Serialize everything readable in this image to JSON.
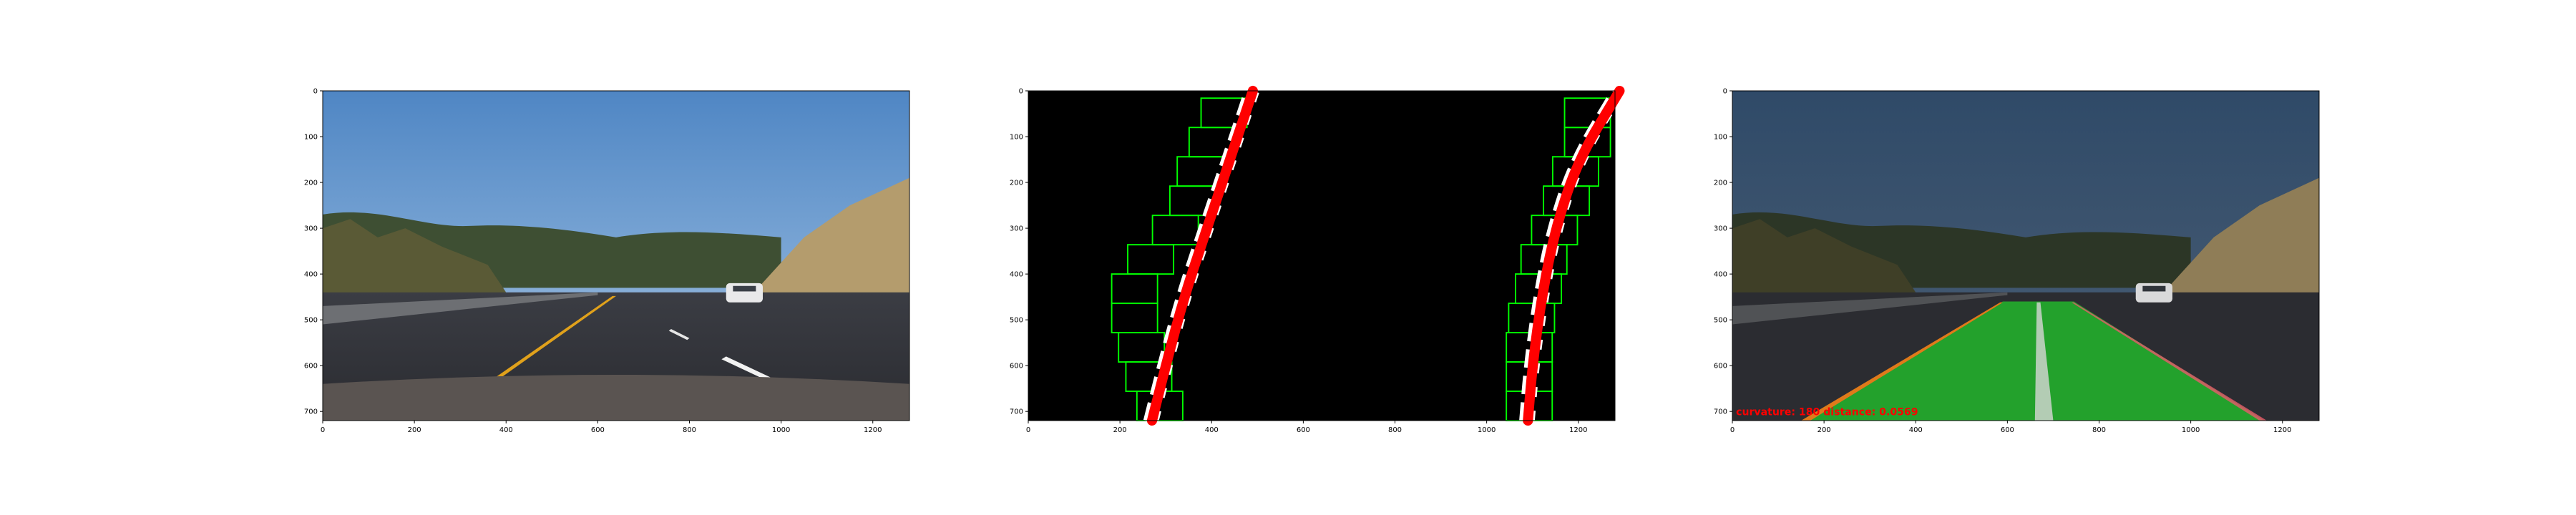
{
  "chart_data": [
    {
      "type": "image",
      "panel": "original",
      "xlim": [
        0,
        1280
      ],
      "ylim": [
        720,
        0
      ],
      "xticks": [
        0,
        200,
        400,
        600,
        800,
        1000,
        1200
      ],
      "yticks": [
        0,
        100,
        200,
        300,
        400,
        500,
        600,
        700
      ],
      "content": "road-photo"
    },
    {
      "type": "image",
      "panel": "sliding-window-fit",
      "xlim": [
        0,
        1280
      ],
      "ylim": [
        720,
        0
      ],
      "xticks": [
        0,
        200,
        400,
        600,
        800,
        1000,
        1200
      ],
      "yticks": [
        0,
        100,
        200,
        300,
        400,
        500,
        600,
        700
      ],
      "windows": {
        "left": [
          [
            287,
            656
          ],
          [
            263,
            592
          ],
          [
            247,
            528
          ],
          [
            232,
            464
          ],
          [
            232,
            400
          ],
          [
            267,
            336
          ],
          [
            321,
            272
          ],
          [
            359,
            208
          ],
          [
            375,
            144
          ],
          [
            401,
            80
          ],
          [
            427,
            16
          ]
        ],
        "right": [
          [
            1093,
            656
          ],
          [
            1093,
            592
          ],
          [
            1093,
            528
          ],
          [
            1098,
            464
          ],
          [
            1113,
            400
          ],
          [
            1125,
            336
          ],
          [
            1148,
            272
          ],
          [
            1174,
            208
          ],
          [
            1194,
            144
          ],
          [
            1220,
            80
          ],
          [
            1220,
            16
          ]
        ],
        "half_width": 50,
        "height": 64
      },
      "fit_left": [
        [
          270,
          720
        ],
        [
          300,
          600
        ],
        [
          340,
          450
        ],
        [
          390,
          300
        ],
        [
          440,
          150
        ],
        [
          490,
          0
        ]
      ],
      "fit_right": [
        [
          1090,
          720
        ],
        [
          1100,
          600
        ],
        [
          1120,
          450
        ],
        [
          1150,
          300
        ],
        [
          1200,
          150
        ],
        [
          1290,
          0
        ]
      ],
      "colors": {
        "window": "#00ff00",
        "fit": "#ff0000",
        "pixels": "#ffffff"
      }
    },
    {
      "type": "image",
      "panel": "lane-overlay",
      "xlim": [
        0,
        1280
      ],
      "ylim": [
        720,
        0
      ],
      "xticks": [
        0,
        200,
        400,
        600,
        800,
        1000,
        1200
      ],
      "yticks": [
        0,
        100,
        200,
        300,
        400,
        500,
        600,
        700
      ],
      "annotation": "curvature: 180 distance: 0.0569",
      "lane_polygon": [
        [
          590,
          460
        ],
        [
          745,
          460
        ],
        [
          1160,
          720
        ],
        [
          155,
          720
        ]
      ],
      "colors": {
        "lane": "#22b62b",
        "text": "#ff0000"
      }
    }
  ]
}
